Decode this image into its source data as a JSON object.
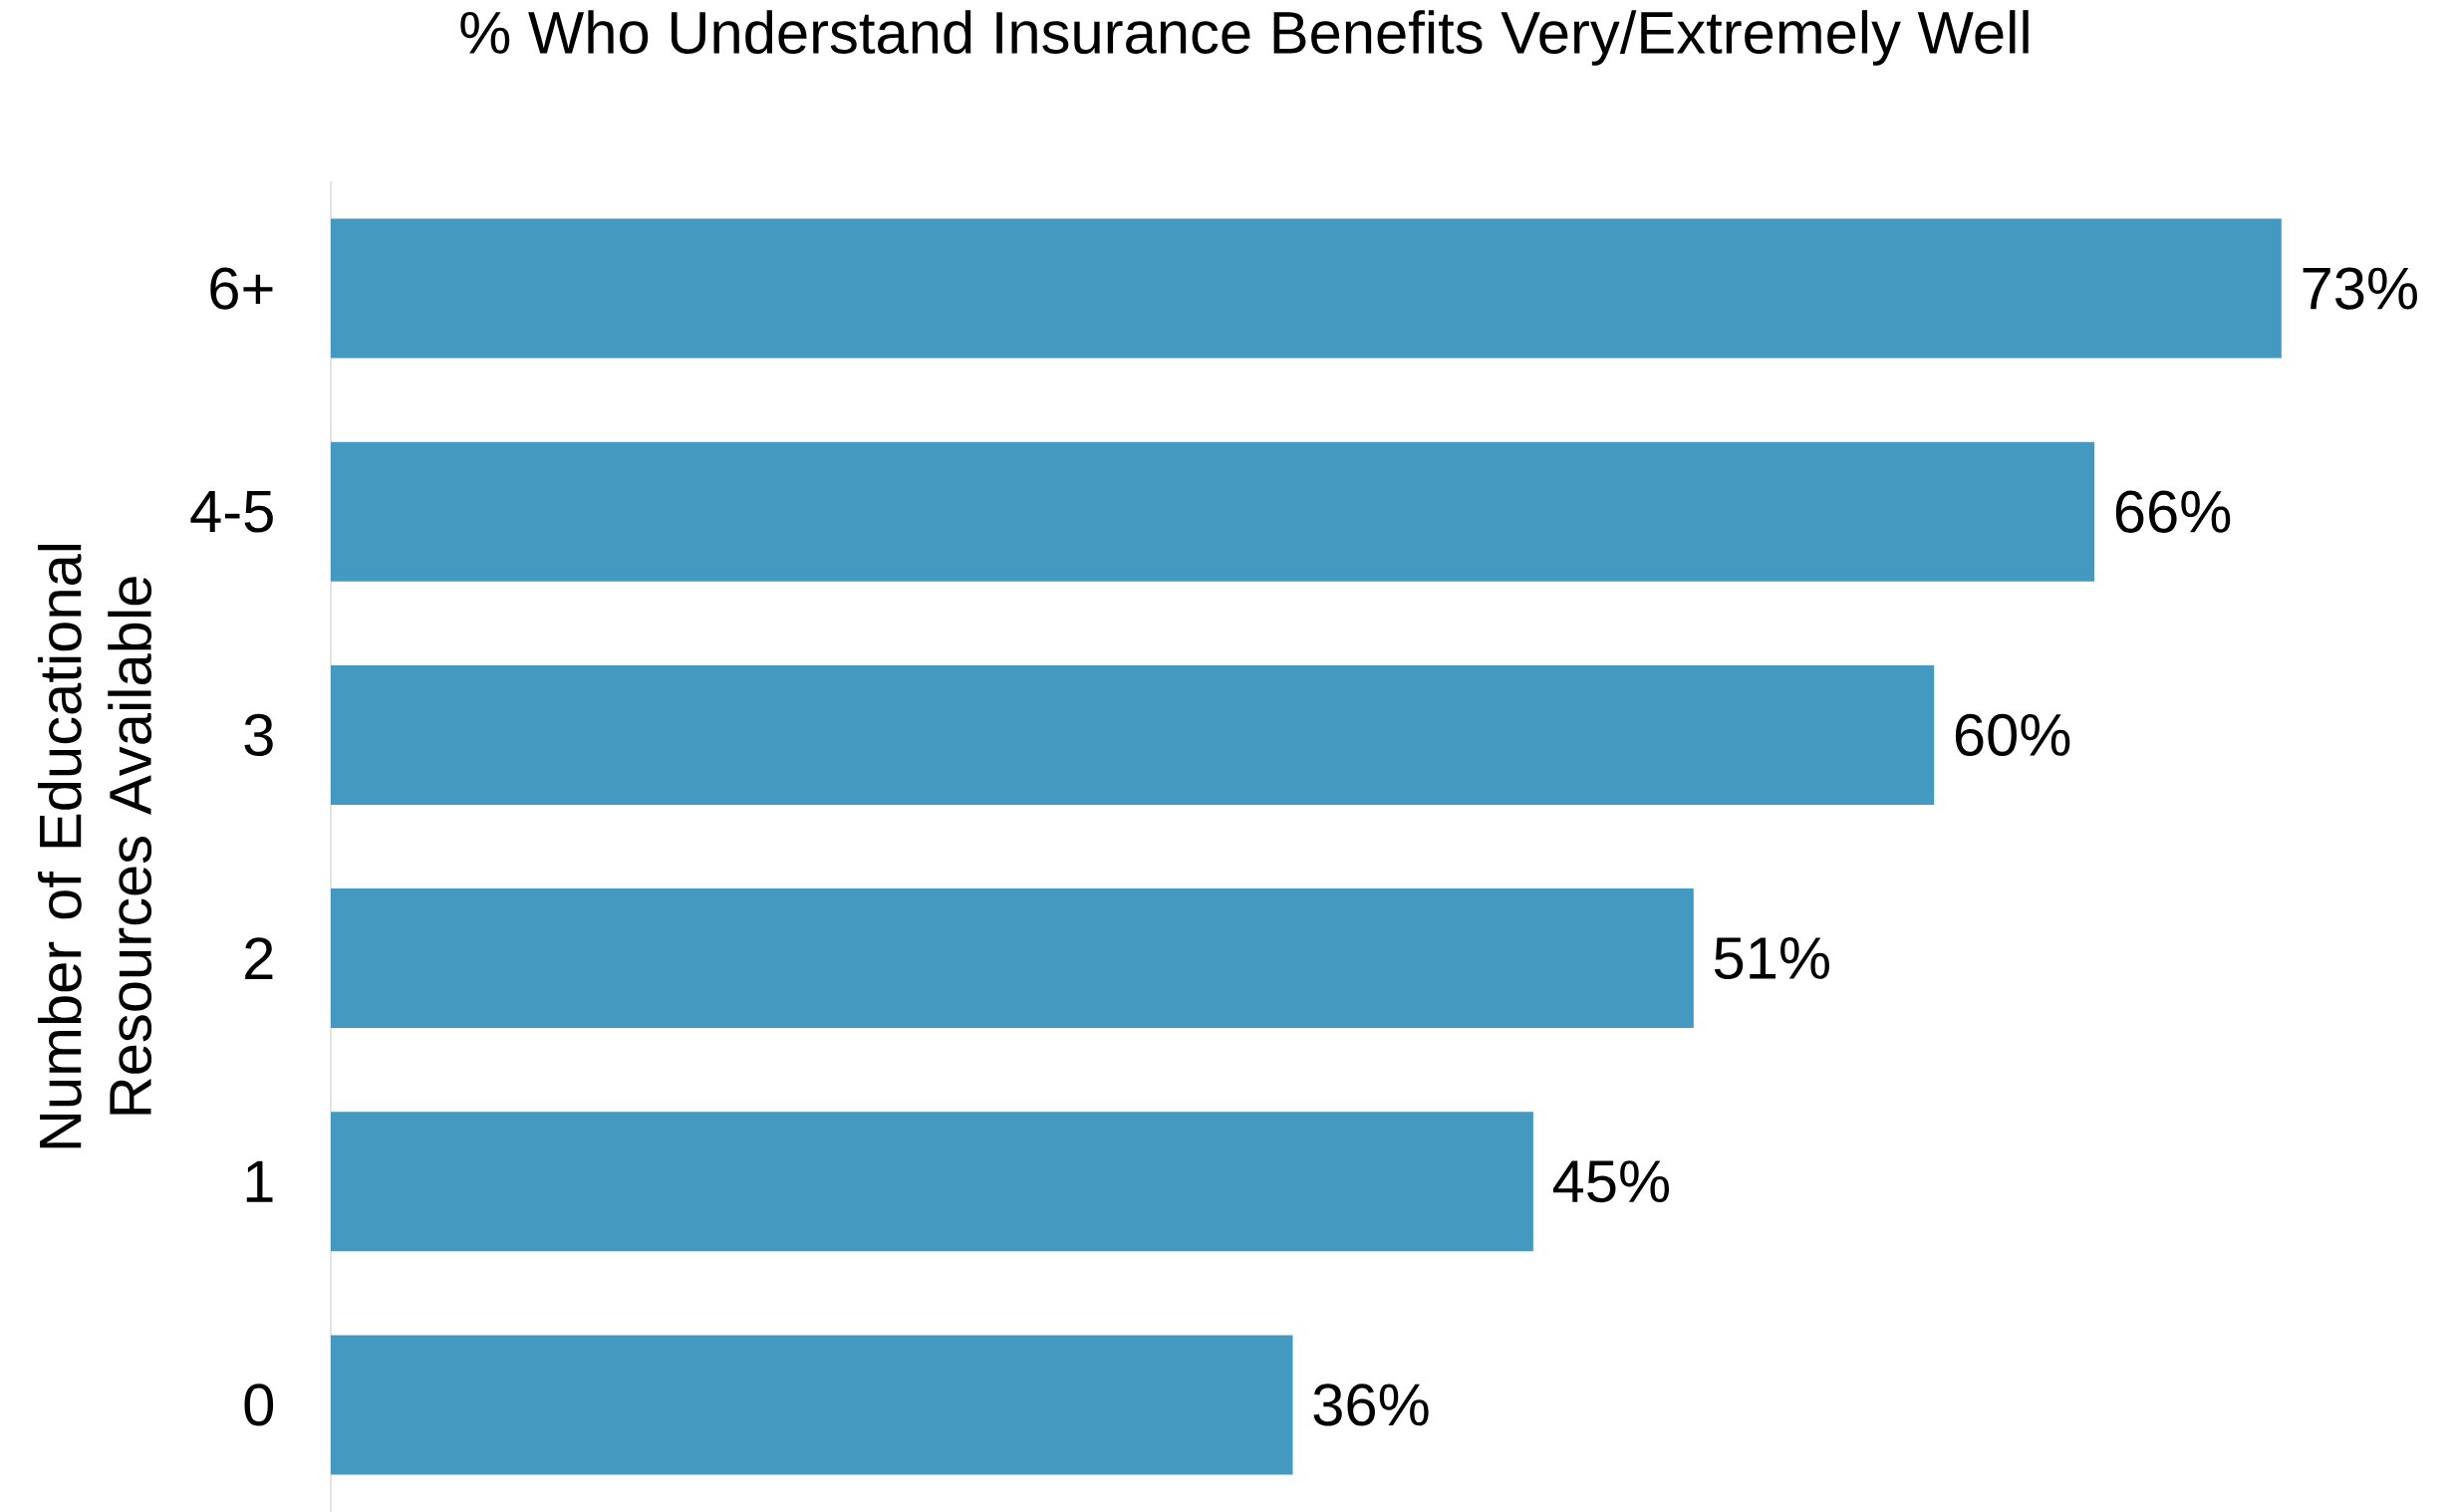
{
  "chart_data": {
    "type": "bar",
    "orientation": "horizontal",
    "title": "% Who Understand Insurance Benefits Very/Extremely Well",
    "ylabel": "Number of Educational Resources Available",
    "categories": [
      "6+",
      "4-5",
      "3",
      "2",
      "1",
      "0"
    ],
    "values": [
      73,
      66,
      60,
      51,
      45,
      36
    ],
    "value_labels": [
      "73%",
      "66%",
      "60%",
      "51%",
      "45%",
      "36%"
    ],
    "color": "#4499c0"
  }
}
